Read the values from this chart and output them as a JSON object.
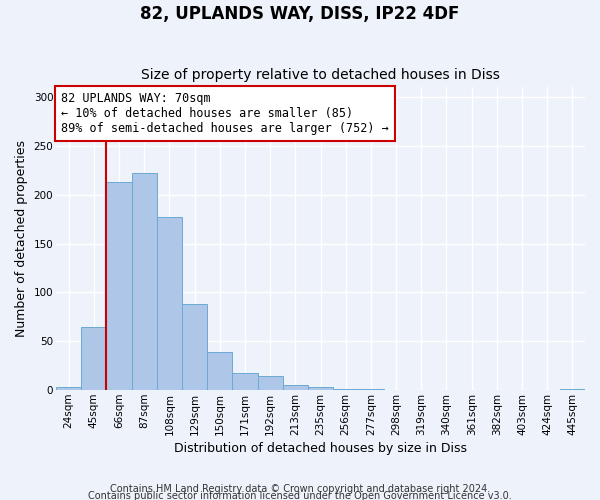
{
  "title": "82, UPLANDS WAY, DISS, IP22 4DF",
  "subtitle": "Size of property relative to detached houses in Diss",
  "xlabel": "Distribution of detached houses by size in Diss",
  "ylabel": "Number of detached properties",
  "bar_labels": [
    "24sqm",
    "45sqm",
    "66sqm",
    "87sqm",
    "108sqm",
    "129sqm",
    "150sqm",
    "171sqm",
    "192sqm",
    "213sqm",
    "235sqm",
    "256sqm",
    "277sqm",
    "298sqm",
    "319sqm",
    "340sqm",
    "361sqm",
    "382sqm",
    "403sqm",
    "424sqm",
    "445sqm"
  ],
  "bar_values": [
    3,
    65,
    213,
    222,
    177,
    88,
    39,
    18,
    14,
    5,
    3,
    1,
    1,
    0,
    0,
    0,
    0,
    0,
    0,
    0,
    1
  ],
  "bar_color": "#aec6e8",
  "bar_edge_color": "#6aaad4",
  "vline_x_idx": 2,
  "vline_color": "#cc0000",
  "ylim": [
    0,
    310
  ],
  "yticks": [
    0,
    50,
    100,
    150,
    200,
    250,
    300
  ],
  "annotation_title": "82 UPLANDS WAY: 70sqm",
  "annotation_line1": "← 10% of detached houses are smaller (85)",
  "annotation_line2": "89% of semi-detached houses are larger (752) →",
  "annotation_box_color": "#ffffff",
  "annotation_box_edge": "#cc0000",
  "footer1": "Contains HM Land Registry data © Crown copyright and database right 2024.",
  "footer2": "Contains public sector information licensed under the Open Government Licence v3.0.",
  "background_color": "#eef2fa",
  "grid_color": "#ffffff",
  "title_fontsize": 12,
  "subtitle_fontsize": 10,
  "axis_label_fontsize": 9,
  "tick_fontsize": 7.5,
  "footer_fontsize": 7,
  "annotation_fontsize": 8.5
}
